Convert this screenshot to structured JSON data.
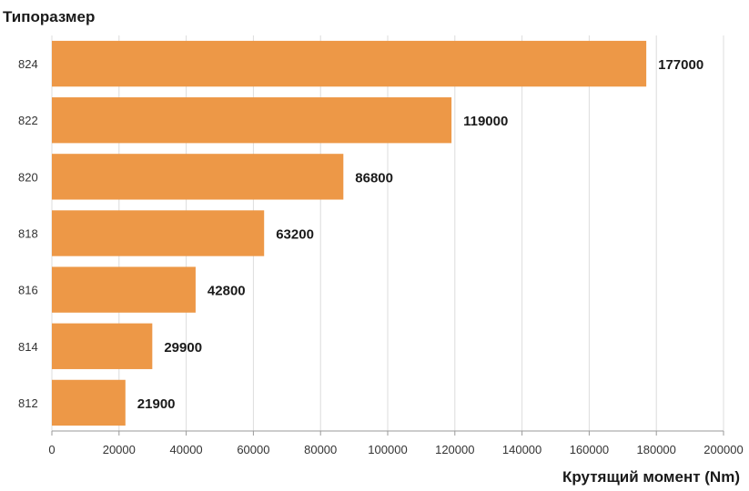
{
  "chart_data": {
    "type": "bar",
    "orientation": "horizontal",
    "ylabel": "Типоразмер",
    "xlabel": "Крутящий момент (Nm)",
    "categories": [
      "824",
      "822",
      "820",
      "818",
      "816",
      "814",
      "812"
    ],
    "values": [
      177000,
      119000,
      86800,
      63200,
      42800,
      29900,
      21900
    ],
    "value_labels": [
      "177000",
      "119000",
      "86800",
      "63200",
      "42800",
      "29900",
      "21900"
    ],
    "xlim": [
      0,
      200000
    ],
    "xticks": [
      "0",
      "20000",
      "40000",
      "60000",
      "80000",
      "100000",
      "120000",
      "140000",
      "160000",
      "180000",
      "200000"
    ],
    "grid": true,
    "bar_color": "#ed9847"
  }
}
